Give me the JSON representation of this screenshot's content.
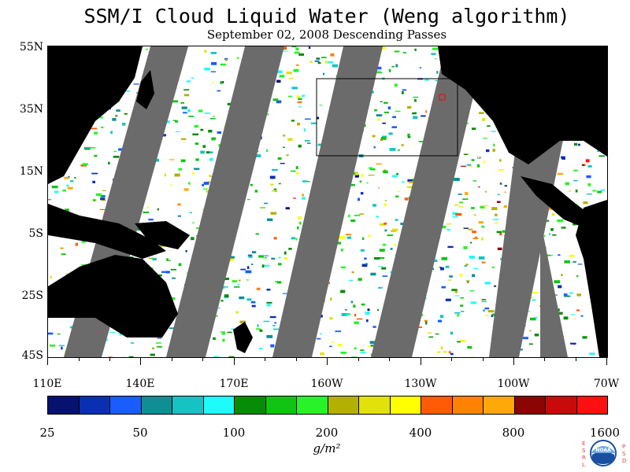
{
  "title": "SSM/I Cloud Liquid Water (Weng algorithm)",
  "subtitle": "September 02, 2008  Descending Passes",
  "lat_labels": [
    "55N",
    "35N",
    "15N",
    "5S",
    "25S",
    "45S"
  ],
  "lon_labels": [
    "110E",
    "140E",
    "170E",
    "160W",
    "130W",
    "100W",
    "70W"
  ],
  "colorbar": {
    "colors": [
      "#06126e",
      "#0a2fb3",
      "#1a5cff",
      "#0f8f94",
      "#17c3c2",
      "#1dfbfb",
      "#078c07",
      "#11c411",
      "#28f328",
      "#b4b003",
      "#e0e20a",
      "#ffff00",
      "#ff5a05",
      "#ff8205",
      "#ffa80a",
      "#8c0505",
      "#c80a0a",
      "#ff1010"
    ],
    "labels": [
      "25",
      "50",
      "100",
      "200",
      "400",
      "800",
      "1600"
    ],
    "units": "g/m²"
  },
  "colors": {
    "land": "#000000",
    "no_data_gap": "#6b6b6b",
    "ocean_clear": "#ffffff"
  },
  "logo": {
    "letters_left": "ESRL",
    "letters_right": "PSD",
    "badge": "NOAA"
  }
}
